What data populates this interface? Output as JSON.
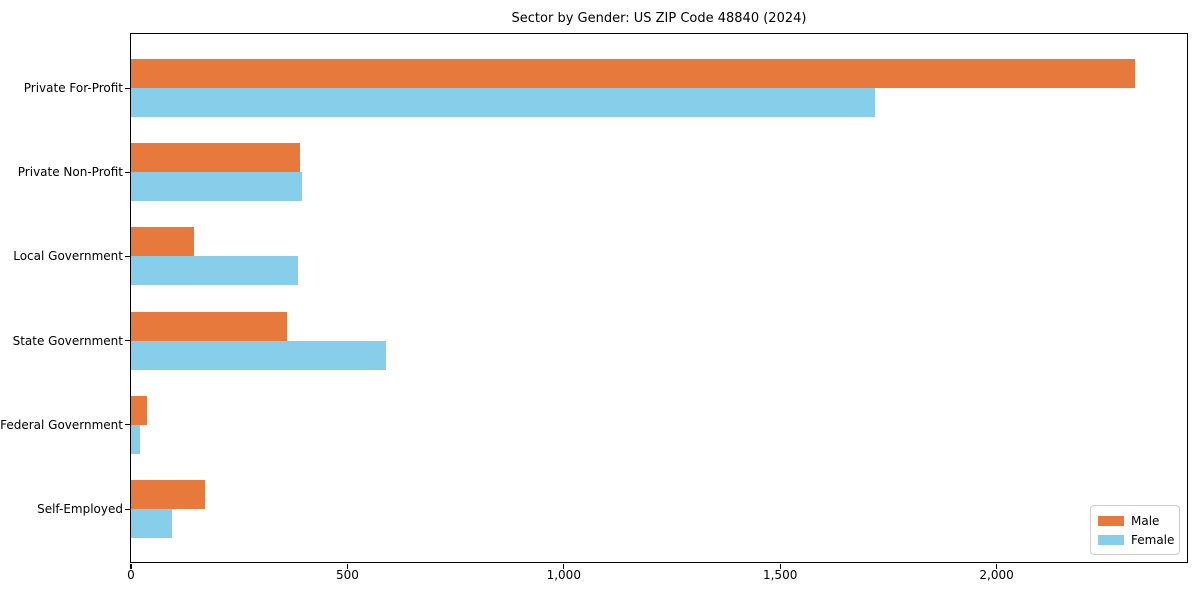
{
  "chart_data": {
    "type": "bar",
    "orientation": "horizontal",
    "title": "Sector by Gender: US ZIP Code 48840 (2024)",
    "categories": [
      "Private For-Profit",
      "Private Non-Profit",
      "Local Government",
      "State Government",
      "Federal Government",
      "Self-Employed"
    ],
    "series": [
      {
        "name": "Male",
        "color": "#e8793c",
        "values": [
          2320,
          390,
          145,
          360,
          37,
          170
        ]
      },
      {
        "name": "Female",
        "color": "#87ceeb",
        "values": [
          1720,
          395,
          385,
          590,
          21,
          94
        ]
      }
    ],
    "xlabel": "",
    "ylabel": "",
    "xlim": [
      0,
      2440
    ],
    "xticks": [
      0,
      500,
      1000,
      1500,
      2000
    ],
    "xtick_labels": [
      "0",
      "500",
      "1,000",
      "1,500",
      "2,000"
    ],
    "grid": false,
    "legend_position": "lower right",
    "axis_color": "#000000",
    "background_color": "#ffffff"
  }
}
